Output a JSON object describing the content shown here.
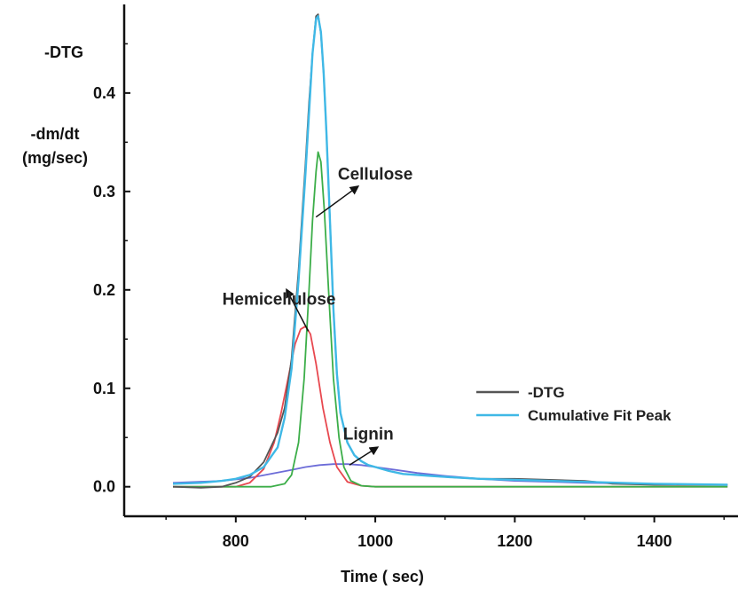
{
  "chart_data": {
    "type": "line",
    "title": "",
    "xlabel": "Time ( sec)",
    "ylabel_lines": [
      "-DTG",
      "-dm/dt",
      "(mg/sec)"
    ],
    "xlim": [
      640,
      1520
    ],
    "ylim": [
      -0.03,
      0.49
    ],
    "xticks": [
      800,
      1000,
      1200,
      1400
    ],
    "yticks": [
      0.0,
      0.1,
      0.2,
      0.3,
      0.4
    ],
    "xtick_labels": [
      "800",
      "1000",
      "1200",
      "1400"
    ],
    "ytick_labels": [
      "0.0",
      "0.1",
      "0.2",
      "0.3",
      "0.4"
    ],
    "grid": false,
    "legend_position": "right",
    "series": [
      {
        "name": "-DTG",
        "color": "#555555",
        "x": [
          710,
          750,
          780,
          800,
          820,
          840,
          860,
          870,
          880,
          890,
          900,
          905,
          910,
          915,
          918,
          922,
          926,
          930,
          935,
          940,
          945,
          950,
          960,
          970,
          980,
          990,
          1000,
          1020,
          1040,
          1060,
          1080,
          1100,
          1150,
          1200,
          1250,
          1300,
          1330,
          1340,
          1400,
          1450,
          1505
        ],
        "y": [
          0.0,
          -0.001,
          0.0,
          0.004,
          0.01,
          0.025,
          0.055,
          0.08,
          0.13,
          0.22,
          0.33,
          0.39,
          0.44,
          0.478,
          0.48,
          0.46,
          0.42,
          0.36,
          0.27,
          0.18,
          0.115,
          0.075,
          0.045,
          0.032,
          0.026,
          0.022,
          0.02,
          0.016,
          0.013,
          0.012,
          0.011,
          0.01,
          0.008,
          0.008,
          0.007,
          0.006,
          0.004,
          0.003,
          0.002,
          0.002,
          0.002
        ]
      },
      {
        "name": "Cumulative Fit Peak",
        "color": "#3fb8e6",
        "x": [
          710,
          750,
          780,
          800,
          820,
          840,
          860,
          870,
          880,
          890,
          900,
          905,
          910,
          915,
          918,
          922,
          926,
          930,
          935,
          940,
          945,
          950,
          960,
          970,
          980,
          990,
          1000,
          1020,
          1040,
          1060,
          1080,
          1100,
          1150,
          1200,
          1250,
          1300,
          1400,
          1505
        ],
        "y": [
          0.003,
          0.004,
          0.006,
          0.008,
          0.012,
          0.02,
          0.04,
          0.07,
          0.12,
          0.21,
          0.32,
          0.38,
          0.44,
          0.475,
          0.478,
          0.462,
          0.42,
          0.36,
          0.27,
          0.18,
          0.115,
          0.075,
          0.045,
          0.032,
          0.026,
          0.022,
          0.02,
          0.016,
          0.013,
          0.012,
          0.011,
          0.01,
          0.008,
          0.007,
          0.006,
          0.005,
          0.003,
          0.002
        ]
      },
      {
        "name": "",
        "color": "#e8484f",
        "x": [
          710,
          800,
          820,
          840,
          855,
          865,
          875,
          885,
          893,
          900,
          907,
          915,
          925,
          935,
          945,
          960,
          980,
          1000,
          1200,
          1505
        ],
        "y": [
          0.0,
          0.0,
          0.004,
          0.018,
          0.045,
          0.075,
          0.11,
          0.145,
          0.16,
          0.163,
          0.155,
          0.125,
          0.08,
          0.045,
          0.02,
          0.005,
          0.001,
          0.0,
          0.0,
          0.0
        ]
      },
      {
        "name": "",
        "color": "#3cae49",
        "x": [
          710,
          850,
          870,
          880,
          890,
          898,
          905,
          910,
          915,
          918,
          922,
          927,
          933,
          940,
          948,
          955,
          965,
          980,
          1000,
          1200,
          1505
        ],
        "y": [
          0.0,
          0.0,
          0.003,
          0.012,
          0.045,
          0.11,
          0.2,
          0.27,
          0.32,
          0.34,
          0.33,
          0.28,
          0.2,
          0.11,
          0.05,
          0.02,
          0.006,
          0.001,
          0.0,
          0.0,
          0.0
        ]
      },
      {
        "name": "",
        "color": "#6c6cd8",
        "x": [
          710,
          780,
          820,
          850,
          880,
          900,
          920,
          940,
          960,
          980,
          1000,
          1030,
          1060,
          1100,
          1150,
          1200,
          1300,
          1400,
          1505
        ],
        "y": [
          0.004,
          0.006,
          0.009,
          0.013,
          0.017,
          0.02,
          0.022,
          0.023,
          0.023,
          0.022,
          0.02,
          0.017,
          0.014,
          0.011,
          0.008,
          0.006,
          0.004,
          0.003,
          0.002
        ]
      }
    ],
    "annotations": [
      {
        "text": "Cellulose",
        "x": 1000,
        "y": 0.312
      },
      {
        "text": "Hemicellulose",
        "x": 862,
        "y": 0.185
      },
      {
        "text": "Lignin",
        "x": 990,
        "y": 0.048
      }
    ],
    "arrows": [
      {
        "from": [
          915,
          0.274
        ],
        "to": [
          975,
          0.305
        ]
      },
      {
        "from": [
          904,
          0.158
        ],
        "to": [
          873,
          0.2
        ]
      },
      {
        "from": [
          963,
          0.022
        ],
        "to": [
          1003,
          0.04
        ]
      }
    ]
  }
}
